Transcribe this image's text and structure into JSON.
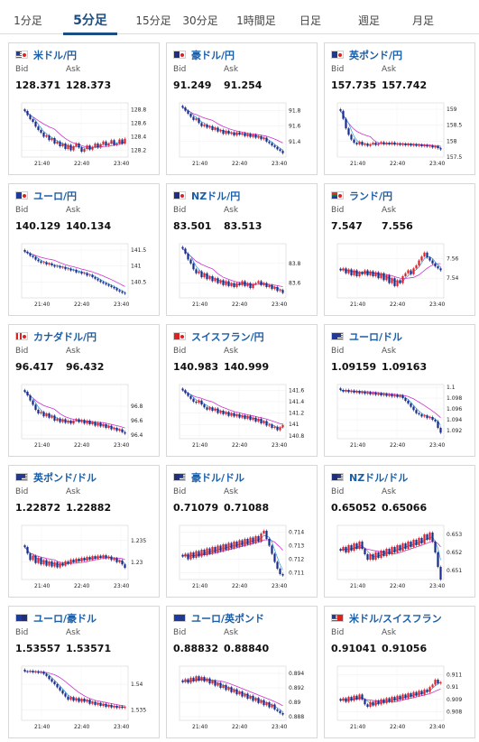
{
  "tabs": [
    {
      "label": "1分足",
      "active": false
    },
    {
      "label": "5分足",
      "active": true
    },
    {
      "label": "15分足",
      "active": false
    },
    {
      "label": "30分足",
      "active": false
    },
    {
      "label": "1時間足",
      "active": false
    },
    {
      "label": "日足",
      "active": false
    },
    {
      "label": "週足",
      "active": false
    },
    {
      "label": "月足",
      "active": false
    }
  ],
  "bid_label": "Bid",
  "ask_label": "Ask",
  "colors": {
    "up": "#d9232d",
    "down": "#1a2b8c",
    "ma_long": "#cc33cc",
    "ma_short": "#2a9ad8",
    "title": "#1a5ea8",
    "tab_active": "#1a4e84"
  },
  "cards": [
    {
      "title": "米ドル/円",
      "flag": "us-jp",
      "bid": "128.371",
      "ask": "128.373",
      "chart_data": {
        "type": "candlestick",
        "x_ticks": [
          "21:40",
          "22:40",
          "23:40"
        ],
        "y_ticks": [
          "128.8",
          "128.6",
          "128.4",
          "128.2"
        ],
        "ylim": [
          128.1,
          128.9
        ],
        "closes": [
          128.78,
          128.72,
          128.66,
          128.62,
          128.55,
          128.5,
          128.46,
          128.4,
          128.42,
          128.35,
          128.38,
          128.3,
          128.33,
          128.26,
          128.3,
          128.22,
          128.28,
          128.2,
          128.26,
          128.3,
          128.24,
          128.18,
          128.22,
          128.27,
          128.21,
          128.25,
          128.3,
          128.24,
          128.29,
          128.33,
          128.27,
          128.3,
          128.35,
          128.28,
          128.3,
          128.36,
          128.3,
          128.37
        ]
      }
    },
    {
      "title": "豪ドル/円",
      "flag": "au-jp",
      "bid": "91.249",
      "ask": "91.254",
      "chart_data": {
        "type": "candlestick",
        "x_ticks": [
          "21:40",
          "22:40",
          "23:40"
        ],
        "y_ticks": [
          "91.8",
          "91.6",
          "91.4"
        ],
        "ylim": [
          91.2,
          91.9
        ],
        "closes": [
          91.84,
          91.8,
          91.76,
          91.72,
          91.68,
          91.7,
          91.64,
          91.6,
          91.62,
          91.58,
          91.6,
          91.55,
          91.58,
          91.53,
          91.55,
          91.5,
          91.54,
          91.5,
          91.52,
          91.48,
          91.52,
          91.49,
          91.51,
          91.47,
          91.5,
          91.46,
          91.49,
          91.45,
          91.47,
          91.43,
          91.45,
          91.4,
          91.38,
          91.35,
          91.33,
          91.3,
          91.28,
          91.25
        ]
      }
    },
    {
      "title": "英ポンド/円",
      "flag": "gb-jp",
      "bid": "157.735",
      "ask": "157.742",
      "chart_data": {
        "type": "candlestick",
        "x_ticks": [
          "21:40",
          "22:40",
          "23:40"
        ],
        "y_ticks": [
          "159",
          "158.5",
          "158",
          "157.5"
        ],
        "ylim": [
          157.5,
          159.2
        ],
        "closes": [
          158.95,
          158.7,
          158.4,
          158.2,
          158.05,
          157.95,
          157.9,
          157.98,
          157.88,
          157.92,
          157.85,
          157.9,
          157.95,
          157.88,
          157.92,
          157.97,
          157.9,
          157.95,
          157.9,
          157.96,
          157.89,
          157.93,
          157.88,
          157.92,
          157.87,
          157.91,
          157.86,
          157.9,
          157.85,
          157.89,
          157.84,
          157.88,
          157.83,
          157.86,
          157.8,
          157.84,
          157.78,
          157.74
        ]
      }
    },
    {
      "title": "ユーロ/円",
      "flag": "eu-jp",
      "bid": "140.129",
      "ask": "140.134",
      "chart_data": {
        "type": "candlestick",
        "x_ticks": [
          "21:40",
          "22:40",
          "23:40"
        ],
        "y_ticks": [
          "141.5",
          "141",
          "140.5"
        ],
        "ylim": [
          140.0,
          141.7
        ],
        "closes": [
          141.45,
          141.4,
          141.32,
          141.28,
          141.2,
          141.15,
          141.1,
          141.12,
          141.05,
          141.08,
          141.02,
          140.98,
          141.0,
          140.95,
          140.97,
          140.9,
          140.92,
          140.86,
          140.88,
          140.8,
          140.82,
          140.76,
          140.78,
          140.7,
          140.72,
          140.65,
          140.6,
          140.55,
          140.5,
          140.46,
          140.42,
          140.38,
          140.34,
          140.3,
          140.24,
          140.2,
          140.16,
          140.13
        ]
      }
    },
    {
      "title": "NZドル/円",
      "flag": "nz-jp",
      "bid": "83.501",
      "ask": "83.513",
      "chart_data": {
        "type": "candlestick",
        "x_ticks": [
          "21:40",
          "22:40",
          "23:40"
        ],
        "y_ticks": [
          "83.8",
          "83.6"
        ],
        "ylim": [
          83.45,
          84.0
        ],
        "closes": [
          83.95,
          83.9,
          83.84,
          83.8,
          83.74,
          83.7,
          83.72,
          83.66,
          83.7,
          83.64,
          83.67,
          83.62,
          83.65,
          83.6,
          83.63,
          83.58,
          83.62,
          83.57,
          83.6,
          83.56,
          83.6,
          83.58,
          83.62,
          83.57,
          83.6,
          83.55,
          83.59,
          83.6,
          83.62,
          83.58,
          83.6,
          83.56,
          83.58,
          83.54,
          83.56,
          83.52,
          83.53,
          83.5
        ]
      }
    },
    {
      "title": "ランド/円",
      "flag": "za-jp",
      "bid": "7.547",
      "ask": "7.556",
      "chart_data": {
        "type": "candlestick",
        "x_ticks": [
          "21:40",
          "22:40",
          "23:40"
        ],
        "y_ticks": [
          "7.56",
          "7.54"
        ],
        "ylim": [
          7.52,
          7.575
        ],
        "closes": [
          7.548,
          7.55,
          7.545,
          7.549,
          7.543,
          7.548,
          7.542,
          7.546,
          7.544,
          7.548,
          7.543,
          7.547,
          7.542,
          7.546,
          7.54,
          7.545,
          7.538,
          7.543,
          7.535,
          7.54,
          7.532,
          7.538,
          7.535,
          7.542,
          7.545,
          7.548,
          7.544,
          7.55,
          7.553,
          7.558,
          7.562,
          7.566,
          7.561,
          7.558,
          7.555,
          7.552,
          7.55,
          7.548
        ]
      }
    },
    {
      "title": "カナダドル/円",
      "flag": "ca-jp",
      "bid": "96.417",
      "ask": "96.432",
      "chart_data": {
        "type": "candlestick",
        "x_ticks": [
          "21:40",
          "22:40",
          "23:40"
        ],
        "y_ticks": [
          "96.8",
          "96.6",
          "96.4"
        ],
        "ylim": [
          96.35,
          97.1
        ],
        "closes": [
          97.0,
          96.95,
          96.88,
          96.82,
          96.75,
          96.7,
          96.72,
          96.66,
          96.7,
          96.64,
          96.67,
          96.6,
          96.63,
          96.58,
          96.62,
          96.57,
          96.6,
          96.56,
          96.6,
          96.62,
          96.58,
          96.61,
          96.56,
          96.6,
          96.55,
          96.58,
          96.53,
          96.57,
          96.52,
          96.55,
          96.5,
          96.53,
          96.48,
          96.5,
          96.46,
          96.48,
          96.44,
          96.42
        ]
      }
    },
    {
      "title": "スイスフラン/円",
      "flag": "ch-jp",
      "bid": "140.983",
      "ask": "140.999",
      "chart_data": {
        "type": "candlestick",
        "x_ticks": [
          "21:40",
          "22:40",
          "23:40"
        ],
        "y_ticks": [
          "141.6",
          "141.4",
          "141.2",
          "141",
          "140.8"
        ],
        "ylim": [
          140.75,
          141.7
        ],
        "closes": [
          141.6,
          141.55,
          141.5,
          141.45,
          141.4,
          141.38,
          141.42,
          141.35,
          141.3,
          141.26,
          141.3,
          141.24,
          141.28,
          141.2,
          141.24,
          141.18,
          141.22,
          141.15,
          141.2,
          141.14,
          141.18,
          141.12,
          141.16,
          141.1,
          141.15,
          141.08,
          141.12,
          141.05,
          141.1,
          141.02,
          141.06,
          140.98,
          141.0,
          140.94,
          140.96,
          140.9,
          140.95,
          140.99
        ]
      }
    },
    {
      "title": "ユーロ/ドル",
      "flag": "eu-us",
      "bid": "1.09159",
      "ask": "1.09163",
      "chart_data": {
        "type": "candlestick",
        "x_ticks": [
          "21:40",
          "22:40",
          "23:40"
        ],
        "y_ticks": [
          "1.1",
          "1.098",
          "1.096",
          "1.094",
          "1.092"
        ],
        "ylim": [
          1.0905,
          1.1005
        ],
        "closes": [
          1.0995,
          1.0992,
          1.0995,
          1.0991,
          1.0994,
          1.099,
          1.0993,
          1.0989,
          1.0992,
          1.0988,
          1.0991,
          1.0987,
          1.099,
          1.0986,
          1.0989,
          1.0985,
          1.0988,
          1.0984,
          1.0987,
          1.0983,
          1.0986,
          1.0982,
          1.0985,
          1.098,
          1.0975,
          1.097,
          1.0964,
          1.0958,
          1.0952,
          1.095,
          1.0946,
          1.0948,
          1.0943,
          1.0945,
          1.094,
          1.0937,
          1.0925,
          1.0916
        ]
      }
    },
    {
      "title": "英ポンド/ドル",
      "flag": "gb-us",
      "bid": "1.22872",
      "ask": "1.22882",
      "chart_data": {
        "type": "candlestick",
        "x_ticks": [
          "21:40",
          "22:40",
          "23:40"
        ],
        "y_ticks": [
          "1.235",
          "1.23"
        ],
        "ylim": [
          1.226,
          1.2385
        ],
        "closes": [
          1.2335,
          1.232,
          1.2305,
          1.2315,
          1.2298,
          1.231,
          1.2295,
          1.2305,
          1.2292,
          1.2302,
          1.229,
          1.23,
          1.2288,
          1.2298,
          1.2292,
          1.2302,
          1.2296,
          1.2306,
          1.23,
          1.2308,
          1.2302,
          1.231,
          1.2304,
          1.2312,
          1.2306,
          1.2314,
          1.2308,
          1.2315,
          1.231,
          1.2316,
          1.2309,
          1.2313,
          1.2305,
          1.2309,
          1.23,
          1.2304,
          1.2295,
          1.2287
        ]
      }
    },
    {
      "title": "豪ドル/ドル",
      "flag": "au-us",
      "bid": "0.71079",
      "ask": "0.71088",
      "chart_data": {
        "type": "candlestick",
        "x_ticks": [
          "21:40",
          "22:40",
          "23:40"
        ],
        "y_ticks": [
          "0.714",
          "0.713",
          "0.712",
          "0.711"
        ],
        "ylim": [
          0.7105,
          0.7145
        ],
        "closes": [
          0.7122,
          0.7124,
          0.712,
          0.7125,
          0.7121,
          0.7126,
          0.7122,
          0.7127,
          0.7123,
          0.7128,
          0.7124,
          0.7129,
          0.7125,
          0.713,
          0.7126,
          0.7131,
          0.7127,
          0.7132,
          0.7128,
          0.7133,
          0.7129,
          0.7134,
          0.713,
          0.7135,
          0.7131,
          0.7136,
          0.7132,
          0.7137,
          0.7133,
          0.7139,
          0.7141,
          0.7135,
          0.713,
          0.7124,
          0.7118,
          0.7113,
          0.7109,
          0.7108
        ]
      }
    },
    {
      "title": "NZドル/ドル",
      "flag": "nz-us",
      "bid": "0.65052",
      "ask": "0.65066",
      "chart_data": {
        "type": "candlestick",
        "x_ticks": [
          "21:40",
          "22:40",
          "23:40"
        ],
        "y_ticks": [
          "0.653",
          "0.652",
          "0.651"
        ],
        "ylim": [
          0.6505,
          0.6535
        ],
        "closes": [
          0.6521,
          0.6523,
          0.652,
          0.6524,
          0.6521,
          0.6525,
          0.6522,
          0.6526,
          0.6522,
          0.6519,
          0.6516,
          0.6519,
          0.6516,
          0.652,
          0.6517,
          0.6521,
          0.6518,
          0.6522,
          0.6519,
          0.6523,
          0.652,
          0.6524,
          0.6521,
          0.6525,
          0.6522,
          0.6526,
          0.6523,
          0.6527,
          0.6524,
          0.6528,
          0.6525,
          0.653,
          0.6527,
          0.6531,
          0.6526,
          0.652,
          0.6512,
          0.6505
        ]
      }
    },
    {
      "title": "ユーロ/豪ドル",
      "flag": "eu-au",
      "bid": "1.53557",
      "ask": "1.53571",
      "chart_data": {
        "type": "candlestick",
        "x_ticks": [
          "21:40",
          "22:40",
          "23:40"
        ],
        "y_ticks": [
          "1.54",
          "1.535"
        ],
        "ylim": [
          1.533,
          1.5435
        ],
        "closes": [
          1.5425,
          1.5424,
          1.5426,
          1.5423,
          1.5425,
          1.5422,
          1.5424,
          1.542,
          1.5416,
          1.541,
          1.5405,
          1.54,
          1.5394,
          1.5388,
          1.5382,
          1.5376,
          1.537,
          1.5375,
          1.5368,
          1.5373,
          1.5366,
          1.5372,
          1.5366,
          1.537,
          1.5362,
          1.5366,
          1.536,
          1.5364,
          1.5358,
          1.5362,
          1.5356,
          1.536,
          1.5355,
          1.5358,
          1.5354,
          1.5357,
          1.5354,
          1.5356
        ]
      }
    },
    {
      "title": "ユーロ/英ポンド",
      "flag": "eu-gb",
      "bid": "0.88832",
      "ask": "0.88840",
      "chart_data": {
        "type": "candlestick",
        "x_ticks": [
          "21:40",
          "22:40",
          "23:40"
        ],
        "y_ticks": [
          "0.894",
          "0.892",
          "0.89",
          "0.888"
        ],
        "ylim": [
          0.8875,
          0.895
        ],
        "closes": [
          0.8928,
          0.8932,
          0.8927,
          0.8934,
          0.8929,
          0.8936,
          0.893,
          0.8935,
          0.8929,
          0.8933,
          0.8926,
          0.893,
          0.8923,
          0.8927,
          0.892,
          0.8924,
          0.8917,
          0.8921,
          0.8914,
          0.8918,
          0.8911,
          0.8915,
          0.8908,
          0.8912,
          0.8905,
          0.8909,
          0.8902,
          0.8906,
          0.8899,
          0.8903,
          0.8896,
          0.89,
          0.8893,
          0.8897,
          0.889,
          0.8888,
          0.8885,
          0.8883
        ]
      }
    },
    {
      "title": "米ドル/スイスフラン",
      "flag": "us-ch",
      "bid": "0.91041",
      "ask": "0.91056",
      "chart_data": {
        "type": "candlestick",
        "x_ticks": [
          "21:40",
          "22:40",
          "23:40"
        ],
        "y_ticks": [
          "0.911",
          "0.91",
          "0.909",
          "0.908"
        ],
        "ylim": [
          0.9073,
          0.9117
        ],
        "closes": [
          0.9089,
          0.9091,
          0.9088,
          0.9092,
          0.9089,
          0.9093,
          0.909,
          0.9094,
          0.909,
          0.9086,
          0.9084,
          0.9088,
          0.9085,
          0.9089,
          0.9086,
          0.909,
          0.9087,
          0.9091,
          0.9088,
          0.9092,
          0.9089,
          0.9093,
          0.909,
          0.9094,
          0.9091,
          0.9095,
          0.9092,
          0.9096,
          0.9093,
          0.9097,
          0.9094,
          0.9098,
          0.9096,
          0.91,
          0.9102,
          0.9106,
          0.9103,
          0.9104
        ]
      }
    }
  ]
}
